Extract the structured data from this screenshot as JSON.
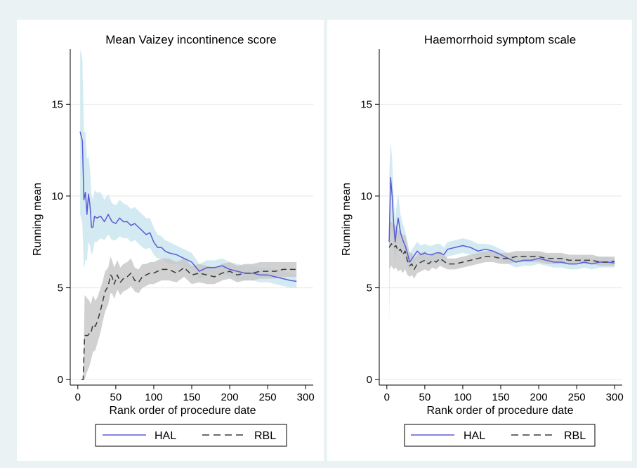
{
  "figure": {
    "background": "#eaf2f3",
    "panel_background": "#ffffff"
  },
  "chart_data": [
    {
      "type": "line",
      "title": "Mean Vaizey incontinence score",
      "xlabel": "Rank order of procedure date",
      "ylabel": "Running mean",
      "xlim": [
        -10,
        310
      ],
      "ylim": [
        -0.3,
        18
      ],
      "xticks": [
        0,
        50,
        100,
        150,
        200,
        250,
        300
      ],
      "yticks": [
        0,
        5,
        10,
        15
      ],
      "grid": true,
      "legend": "bottom",
      "series": [
        {
          "name": "HAL",
          "color": "#5b5bd6",
          "dash": "solid",
          "band_color": "#cfe8f1",
          "x": [
            3,
            6,
            8,
            10,
            12,
            14,
            16,
            18,
            20,
            22,
            25,
            30,
            35,
            40,
            45,
            50,
            55,
            60,
            65,
            70,
            75,
            80,
            85,
            90,
            95,
            100,
            105,
            110,
            115,
            120,
            130,
            140,
            150,
            160,
            170,
            180,
            190,
            200,
            210,
            220,
            230,
            240,
            250,
            260,
            270,
            280,
            288
          ],
          "y": [
            13.5,
            13.0,
            9.8,
            10.2,
            9.0,
            10.1,
            9.5,
            8.3,
            8.3,
            8.9,
            8.8,
            8.9,
            8.6,
            9.0,
            8.6,
            8.5,
            8.8,
            8.6,
            8.6,
            8.4,
            8.5,
            8.3,
            8.1,
            7.9,
            8.0,
            7.5,
            7.2,
            7.2,
            7.0,
            6.9,
            6.8,
            6.6,
            6.4,
            5.9,
            6.1,
            6.1,
            6.2,
            6.0,
            5.9,
            5.8,
            5.8,
            5.7,
            5.7,
            5.6,
            5.5,
            5.4,
            5.35
          ],
          "lower": [
            9.0,
            8.5,
            6.0,
            6.5,
            6.5,
            7.5,
            7.3,
            6.8,
            7.0,
            7.5,
            7.5,
            7.7,
            7.6,
            7.9,
            7.6,
            7.6,
            7.8,
            7.7,
            7.7,
            7.5,
            7.6,
            7.4,
            7.2,
            7.1,
            7.2,
            6.8,
            6.6,
            6.6,
            6.4,
            6.3,
            6.3,
            6.1,
            6.0,
            5.5,
            5.7,
            5.7,
            5.8,
            5.6,
            5.5,
            5.4,
            5.4,
            5.3,
            5.3,
            5.2,
            5.1,
            5.0,
            5.0
          ],
          "upper": [
            18.0,
            17.5,
            13.5,
            13.5,
            12.0,
            12.2,
            11.5,
            10.0,
            9.8,
            10.3,
            10.2,
            10.2,
            9.8,
            10.1,
            9.6,
            9.5,
            9.8,
            9.6,
            9.5,
            9.3,
            9.4,
            9.2,
            9.0,
            8.8,
            8.8,
            8.3,
            7.9,
            7.8,
            7.6,
            7.5,
            7.3,
            7.1,
            6.9,
            6.3,
            6.5,
            6.5,
            6.6,
            6.4,
            6.3,
            6.2,
            6.2,
            6.1,
            6.1,
            6.0,
            5.9,
            5.8,
            5.7
          ]
        },
        {
          "name": "RBL",
          "color": "#3a3a3a",
          "dash": "dashed",
          "band_color": "#c6c6c6",
          "x": [
            5,
            7,
            9,
            11,
            13,
            15,
            17,
            20,
            23,
            26,
            30,
            33,
            36,
            40,
            43,
            45,
            48,
            52,
            56,
            60,
            65,
            70,
            75,
            80,
            85,
            90,
            95,
            100,
            110,
            120,
            130,
            140,
            150,
            160,
            170,
            180,
            190,
            200,
            210,
            220,
            230,
            240,
            250,
            260,
            270,
            280,
            288
          ],
          "y": [
            0.0,
            0.0,
            2.4,
            2.4,
            2.4,
            2.5,
            2.5,
            3.0,
            2.9,
            3.2,
            3.8,
            4.3,
            4.8,
            5.1,
            5.7,
            5.6,
            5.2,
            5.7,
            5.3,
            5.5,
            5.6,
            5.8,
            5.4,
            5.3,
            5.6,
            5.7,
            5.8,
            5.8,
            6.0,
            6.0,
            5.8,
            6.1,
            5.7,
            5.8,
            5.7,
            5.6,
            5.8,
            5.9,
            5.7,
            5.8,
            5.8,
            5.9,
            5.9,
            5.9,
            6.0,
            6.0,
            6.0
          ],
          "lower": [
            0.0,
            0.0,
            0.0,
            0.3,
            0.5,
            0.7,
            1.0,
            1.5,
            1.6,
            2.0,
            2.6,
            3.2,
            3.7,
            4.1,
            4.7,
            4.7,
            4.4,
            4.9,
            4.6,
            4.8,
            4.9,
            5.1,
            4.8,
            4.7,
            5.0,
            5.1,
            5.2,
            5.2,
            5.4,
            5.4,
            5.3,
            5.6,
            5.2,
            5.3,
            5.2,
            5.2,
            5.4,
            5.5,
            5.3,
            5.4,
            5.4,
            5.5,
            5.5,
            5.5,
            5.6,
            5.6,
            5.6
          ],
          "upper": [
            0.0,
            0.0,
            4.6,
            4.5,
            4.4,
            4.3,
            4.1,
            4.6,
            4.3,
            4.5,
            5.0,
            5.4,
            5.9,
            6.1,
            6.7,
            6.5,
            6.1,
            6.5,
            6.1,
            6.3,
            6.4,
            6.6,
            6.1,
            6.0,
            6.3,
            6.3,
            6.4,
            6.4,
            6.6,
            6.6,
            6.4,
            6.6,
            6.2,
            6.3,
            6.2,
            6.1,
            6.3,
            6.4,
            6.2,
            6.3,
            6.3,
            6.4,
            6.4,
            6.4,
            6.4,
            6.4,
            6.4
          ]
        }
      ]
    },
    {
      "type": "line",
      "title": "Haemorrhoid symptom scale",
      "xlabel": "Rank order of procedure date",
      "ylabel": "Running mean",
      "xlim": [
        -10,
        310
      ],
      "ylim": [
        -0.3,
        18
      ],
      "xticks": [
        0,
        50,
        100,
        150,
        200,
        250,
        300
      ],
      "yticks": [
        0,
        5,
        10,
        15
      ],
      "grid": true,
      "legend": "bottom",
      "series": [
        {
          "name": "HAL",
          "color": "#5b5bd6",
          "dash": "solid",
          "band_color": "#cfe8f1",
          "x": [
            3,
            5,
            7,
            9,
            11,
            13,
            15,
            18,
            21,
            24,
            27,
            30,
            35,
            40,
            45,
            50,
            55,
            60,
            65,
            70,
            75,
            80,
            90,
            100,
            110,
            120,
            130,
            140,
            150,
            160,
            170,
            180,
            190,
            200,
            210,
            220,
            230,
            240,
            250,
            260,
            270,
            280,
            290,
            300
          ],
          "y": [
            7.5,
            11.0,
            10.0,
            8.5,
            7.5,
            8.3,
            8.8,
            8.0,
            7.6,
            7.3,
            6.9,
            6.4,
            6.7,
            7.0,
            6.8,
            6.9,
            6.8,
            6.8,
            6.9,
            6.9,
            6.8,
            7.1,
            7.2,
            7.3,
            7.2,
            7.0,
            7.1,
            7.0,
            6.8,
            6.6,
            6.4,
            6.5,
            6.5,
            6.6,
            6.5,
            6.4,
            6.4,
            6.3,
            6.3,
            6.4,
            6.3,
            6.4,
            6.4,
            6.35
          ],
          "lower": [
            3.0,
            8.5,
            8.0,
            7.0,
            6.3,
            7.0,
            7.5,
            7.0,
            6.7,
            6.5,
            6.2,
            5.9,
            6.2,
            6.5,
            6.3,
            6.4,
            6.3,
            6.3,
            6.4,
            6.4,
            6.4,
            6.7,
            6.8,
            6.9,
            6.8,
            6.6,
            6.8,
            6.7,
            6.5,
            6.3,
            6.1,
            6.2,
            6.2,
            6.3,
            6.2,
            6.1,
            6.1,
            6.0,
            6.0,
            6.1,
            6.0,
            6.1,
            6.1,
            6.1
          ],
          "upper": [
            11.0,
            13.0,
            12.0,
            10.0,
            8.7,
            9.6,
            10.1,
            9.0,
            8.5,
            8.1,
            7.6,
            6.9,
            7.2,
            7.5,
            7.3,
            7.4,
            7.3,
            7.3,
            7.4,
            7.4,
            7.2,
            7.5,
            7.6,
            7.7,
            7.6,
            7.4,
            7.4,
            7.3,
            7.1,
            6.9,
            6.7,
            6.8,
            6.8,
            6.9,
            6.8,
            6.7,
            6.7,
            6.6,
            6.6,
            6.7,
            6.6,
            6.7,
            6.7,
            6.6
          ]
        },
        {
          "name": "RBL",
          "color": "#3a3a3a",
          "dash": "dashed",
          "band_color": "#c6c6c6",
          "x": [
            3,
            6,
            9,
            12,
            15,
            18,
            21,
            24,
            27,
            30,
            33,
            36,
            40,
            45,
            50,
            55,
            60,
            65,
            70,
            80,
            90,
            100,
            110,
            120,
            130,
            140,
            150,
            160,
            170,
            180,
            190,
            200,
            210,
            220,
            230,
            240,
            250,
            260,
            270,
            280,
            290,
            300
          ],
          "y": [
            7.2,
            7.4,
            7.2,
            7.3,
            7.0,
            7.1,
            6.8,
            7.0,
            6.5,
            6.2,
            6.3,
            6.0,
            6.3,
            6.4,
            6.5,
            6.3,
            6.5,
            6.4,
            6.6,
            6.3,
            6.3,
            6.4,
            6.5,
            6.6,
            6.7,
            6.7,
            6.6,
            6.6,
            6.7,
            6.7,
            6.7,
            6.7,
            6.6,
            6.6,
            6.6,
            6.5,
            6.5,
            6.5,
            6.5,
            6.4,
            6.4,
            6.45
          ],
          "lower": [
            6.0,
            6.2,
            6.0,
            6.1,
            5.9,
            6.0,
            5.8,
            6.0,
            5.7,
            5.6,
            5.7,
            5.5,
            5.8,
            5.9,
            6.0,
            5.9,
            6.1,
            6.0,
            6.2,
            6.0,
            6.0,
            6.1,
            6.2,
            6.3,
            6.4,
            6.4,
            6.3,
            6.3,
            6.4,
            6.4,
            6.4,
            6.4,
            6.3,
            6.3,
            6.3,
            6.3,
            6.3,
            6.3,
            6.3,
            6.2,
            6.2,
            6.2
          ],
          "upper": [
            8.5,
            8.6,
            8.4,
            8.4,
            8.1,
            8.1,
            7.8,
            7.9,
            7.3,
            6.9,
            6.9,
            6.6,
            6.8,
            6.9,
            7.0,
            6.7,
            6.9,
            6.8,
            7.0,
            6.6,
            6.6,
            6.7,
            6.8,
            6.9,
            7.0,
            7.0,
            6.9,
            6.9,
            7.0,
            7.0,
            7.0,
            7.0,
            6.9,
            6.9,
            6.9,
            6.8,
            6.8,
            6.8,
            6.8,
            6.7,
            6.7,
            6.7
          ]
        }
      ]
    }
  ]
}
